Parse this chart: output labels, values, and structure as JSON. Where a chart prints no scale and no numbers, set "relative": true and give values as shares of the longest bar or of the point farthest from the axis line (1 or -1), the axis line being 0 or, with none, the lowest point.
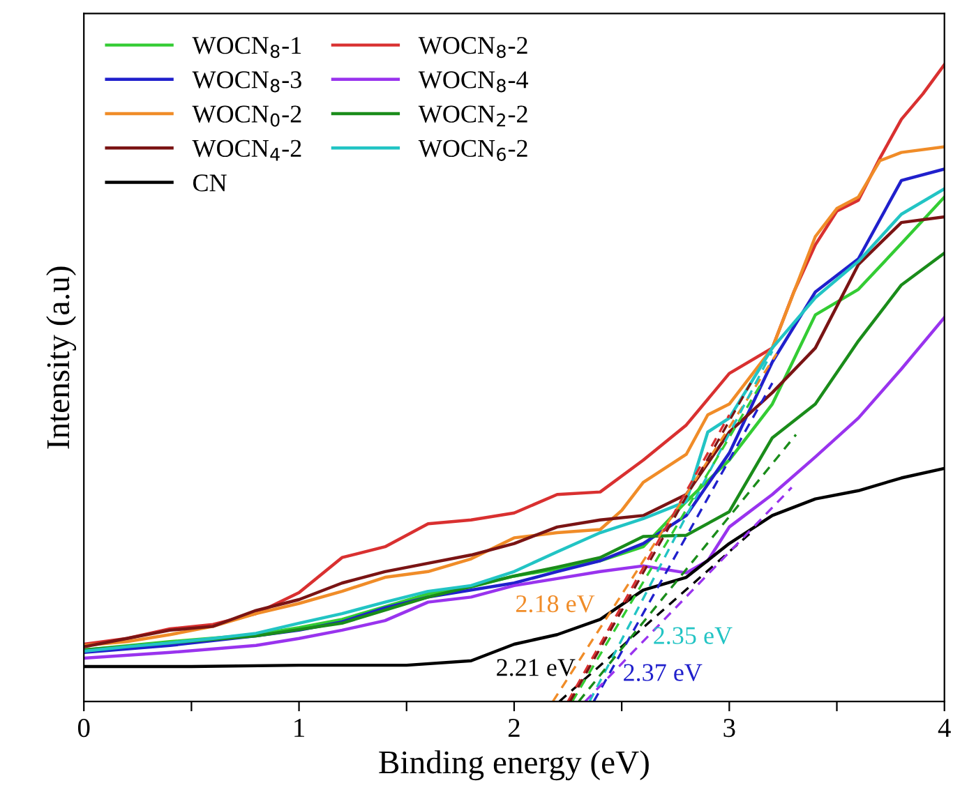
{
  "chart_data": {
    "type": "line",
    "xlabel": "Binding energy (eV)",
    "ylabel": "Intensity (a.u)",
    "relative": true,
    "xlim": [
      0,
      4
    ],
    "xticks": [
      0,
      {
        "value": 0.5,
        "label": null
      },
      1,
      {
        "value": 1.5,
        "label": null
      },
      2,
      {
        "value": 2.5,
        "label": null
      },
      3,
      {
        "value": 3.5,
        "label": null
      },
      4
    ],
    "legend": "top left",
    "grid": false,
    "line_style": "solid",
    "series": [
      {
        "name": "WOCN$_{8}$-1",
        "color": "#33cc33",
        "x": [
          0,
          0.4,
          0.8,
          1.0,
          1.2,
          1.4,
          1.6,
          1.8,
          2.0,
          2.2,
          2.4,
          2.6,
          2.8,
          3.0,
          3.2,
          3.4,
          3.6,
          3.8,
          4.0
        ],
        "values": [
          0.081,
          0.094,
          0.105,
          0.116,
          0.129,
          0.149,
          0.169,
          0.18,
          0.197,
          0.208,
          0.221,
          0.243,
          0.314,
          0.379,
          0.467,
          0.607,
          0.647,
          0.719,
          0.792
        ]
      },
      {
        "name": "WOCN$_{8}$-2",
        "color": "#d93030",
        "x": [
          0,
          0.2,
          0.4,
          0.6,
          0.8,
          1.0,
          1.2,
          1.4,
          1.6,
          1.8,
          2.0,
          2.2,
          2.4,
          2.6,
          2.8,
          3.0,
          3.2,
          3.3,
          3.4,
          3.5,
          3.6,
          3.7,
          3.8,
          3.9,
          4.0
        ],
        "values": [
          0.09,
          0.099,
          0.114,
          0.121,
          0.138,
          0.171,
          0.226,
          0.243,
          0.279,
          0.285,
          0.296,
          0.325,
          0.329,
          0.379,
          0.434,
          0.515,
          0.555,
          0.643,
          0.717,
          0.77,
          0.787,
          0.853,
          0.914,
          0.954,
          1.0
        ]
      },
      {
        "name": "WOCN$_{8}$-3",
        "color": "#2020cc",
        "x": [
          0,
          0.4,
          0.8,
          1.0,
          1.2,
          1.4,
          1.6,
          1.8,
          2.0,
          2.2,
          2.4,
          2.6,
          2.8,
          3.0,
          3.2,
          3.4,
          3.6,
          3.8,
          4.0
        ],
        "values": [
          0.077,
          0.088,
          0.103,
          0.112,
          0.125,
          0.147,
          0.164,
          0.175,
          0.186,
          0.204,
          0.221,
          0.248,
          0.292,
          0.39,
          0.533,
          0.643,
          0.695,
          0.818,
          0.836
        ]
      },
      {
        "name": "WOCN$_{8}$-4",
        "color": "#9933ee",
        "x": [
          0,
          0.4,
          0.8,
          1.0,
          1.2,
          1.4,
          1.6,
          1.8,
          2.0,
          2.2,
          2.4,
          2.6,
          2.8,
          2.9,
          3.0,
          3.2,
          3.4,
          3.6,
          3.8,
          4.0
        ],
        "values": [
          0.068,
          0.077,
          0.088,
          0.099,
          0.112,
          0.127,
          0.156,
          0.164,
          0.182,
          0.193,
          0.204,
          0.213,
          0.202,
          0.221,
          0.274,
          0.325,
          0.384,
          0.445,
          0.522,
          0.603
        ]
      },
      {
        "name": "WOCN$_{0}$-2",
        "color": "#f08c28",
        "x": [
          0,
          0.2,
          0.4,
          0.6,
          0.8,
          1.0,
          1.2,
          1.4,
          1.6,
          1.8,
          2.0,
          2.2,
          2.4,
          2.5,
          2.6,
          2.8,
          2.9,
          3.0,
          3.2,
          3.4,
          3.5,
          3.6,
          3.7,
          3.8,
          4.0
        ],
        "values": [
          0.088,
          0.094,
          0.105,
          0.118,
          0.138,
          0.154,
          0.173,
          0.195,
          0.204,
          0.224,
          0.257,
          0.265,
          0.27,
          0.3,
          0.344,
          0.388,
          0.45,
          0.467,
          0.555,
          0.73,
          0.774,
          0.792,
          0.849,
          0.862,
          0.871
        ]
      },
      {
        "name": "WOCN$_{2}$-2",
        "color": "#1a8c1a",
        "x": [
          0,
          0.4,
          0.8,
          1.2,
          1.6,
          2.0,
          2.2,
          2.4,
          2.6,
          2.8,
          3.0,
          3.2,
          3.4,
          3.6,
          3.8,
          4.0
        ],
        "values": [
          0.081,
          0.092,
          0.103,
          0.123,
          0.164,
          0.197,
          0.211,
          0.226,
          0.259,
          0.261,
          0.298,
          0.414,
          0.467,
          0.566,
          0.654,
          0.704
        ]
      },
      {
        "name": "WOCN$_{4}$-2",
        "color": "#7a1414",
        "x": [
          0,
          0.2,
          0.4,
          0.6,
          0.8,
          1.0,
          1.2,
          1.4,
          1.6,
          1.8,
          2.0,
          2.2,
          2.4,
          2.6,
          2.8,
          3.0,
          3.2,
          3.4,
          3.6,
          3.8,
          4.0
        ],
        "values": [
          0.086,
          0.099,
          0.112,
          0.118,
          0.143,
          0.16,
          0.186,
          0.204,
          0.217,
          0.23,
          0.248,
          0.274,
          0.285,
          0.292,
          0.325,
          0.423,
          0.485,
          0.555,
          0.686,
          0.752,
          0.761
        ]
      },
      {
        "name": "WOCN$_{6}$-2",
        "color": "#22c4c4",
        "x": [
          0,
          0.2,
          0.4,
          0.6,
          0.8,
          1.0,
          1.2,
          1.4,
          1.6,
          1.8,
          2.0,
          2.2,
          2.4,
          2.6,
          2.8,
          2.9,
          3.0,
          3.2,
          3.4,
          3.6,
          3.8,
          4.0
        ],
        "values": [
          0.079,
          0.086,
          0.092,
          0.099,
          0.107,
          0.123,
          0.138,
          0.156,
          0.173,
          0.182,
          0.204,
          0.235,
          0.265,
          0.287,
          0.314,
          0.423,
          0.445,
          0.555,
          0.634,
          0.691,
          0.765,
          0.805
        ]
      },
      {
        "name": "CN",
        "color": "#000000",
        "x": [
          0,
          0.5,
          1.0,
          1.5,
          1.8,
          2.0,
          2.2,
          2.4,
          2.6,
          2.8,
          3.0,
          3.2,
          3.4,
          3.6,
          3.8,
          4.0
        ],
        "values": [
          0.055,
          0.055,
          0.057,
          0.057,
          0.064,
          0.09,
          0.105,
          0.129,
          0.175,
          0.195,
          0.248,
          0.292,
          0.318,
          0.331,
          0.351,
          0.366
        ]
      },
      {
        "type": "line",
        "line_style": "dashed",
        "color": "#f08c28",
        "x": [
          2.18,
          3.22
        ],
        "values": [
          0,
          0.546
        ]
      },
      {
        "type": "line",
        "line_style": "dashed",
        "color": "#000000",
        "x": [
          2.21,
          3.1
        ],
        "values": [
          0,
          0.265
        ]
      },
      {
        "type": "line",
        "line_style": "dashed",
        "color": "#22c4c4",
        "x": [
          2.35,
          3.2
        ],
        "values": [
          0,
          0.55
        ]
      },
      {
        "type": "line",
        "line_style": "dashed",
        "color": "#2020cc",
        "x": [
          2.37,
          3.2
        ],
        "values": [
          0,
          0.5
        ]
      },
      {
        "type": "line",
        "line_style": "dashed",
        "color": "#9933ee",
        "x": [
          2.33,
          3.29
        ],
        "values": [
          0,
          0.336
        ]
      },
      {
        "type": "line",
        "line_style": "dashed",
        "color": "#33cc33",
        "x": [
          2.27,
          3.15
        ],
        "values": [
          0,
          0.5
        ]
      },
      {
        "type": "line",
        "line_style": "dashed",
        "color": "#1a8c1a",
        "x": [
          2.3,
          3.31
        ],
        "values": [
          0,
          0.419
        ]
      },
      {
        "type": "line",
        "line_style": "dashed",
        "color": "#d93030",
        "x": [
          2.25,
          3.0
        ],
        "values": [
          0,
          0.45
        ]
      },
      {
        "type": "line",
        "line_style": "dashed",
        "color": "#7a1414",
        "x": [
          2.26,
          3.1
        ],
        "values": [
          0,
          0.5
        ]
      }
    ],
    "annotations": [
      "2.18 eV",
      "2.21 eV",
      "2.35 eV",
      "2.37 eV"
    ]
  }
}
